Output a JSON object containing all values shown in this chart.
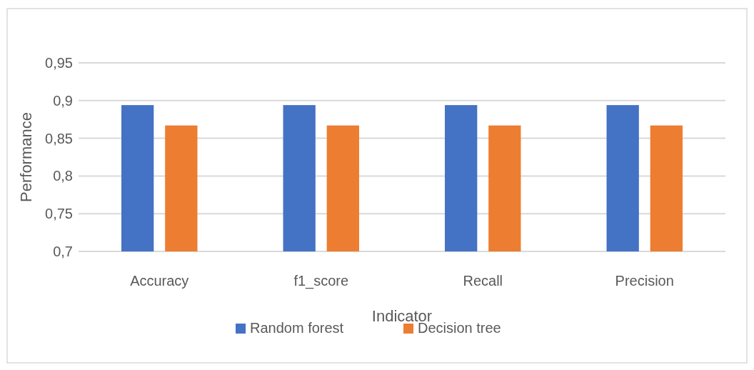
{
  "chart_data": {
    "type": "bar",
    "xlabel": "Indicator",
    "ylabel": "Performance",
    "categories": [
      "Accuracy",
      "f1_score",
      "Recall",
      "Precision"
    ],
    "series": [
      {
        "name": "Random forest",
        "color": "#4472c4",
        "values": [
          0.894,
          0.894,
          0.894,
          0.894
        ]
      },
      {
        "name": "Decision tree",
        "color": "#ed7d31",
        "values": [
          0.867,
          0.867,
          0.867,
          0.867
        ]
      }
    ],
    "ylim": [
      0.7,
      0.95
    ],
    "yticks": [
      {
        "value": 0.7,
        "label": "0,7"
      },
      {
        "value": 0.75,
        "label": "0,75"
      },
      {
        "value": 0.8,
        "label": "0,8"
      },
      {
        "value": 0.85,
        "label": "0,85"
      },
      {
        "value": 0.9,
        "label": "0,9"
      },
      {
        "value": 0.95,
        "label": "0,95"
      }
    ],
    "grid": "y",
    "legend": "bottom"
  }
}
